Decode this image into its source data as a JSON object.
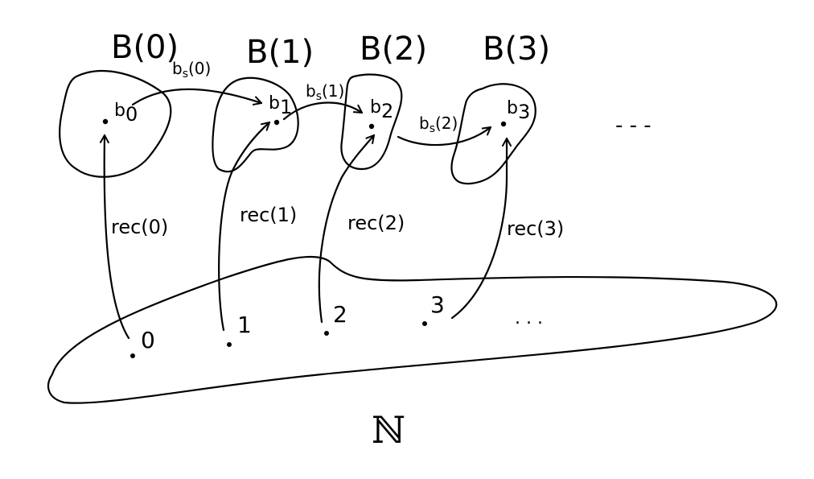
{
  "sets": [
    {
      "title": "B(0)",
      "element_base": "b",
      "element_sub": "0"
    },
    {
      "title": "B(1)",
      "element_base": "b",
      "element_sub": "1"
    },
    {
      "title": "B(2)",
      "element_base": "b",
      "element_sub": "2"
    },
    {
      "title": "B(3)",
      "element_base": "b",
      "element_sub": "3"
    }
  ],
  "successor_edges": [
    {
      "base": "b",
      "sub": "s",
      "arg": "(0)"
    },
    {
      "base": "b",
      "sub": "s",
      "arg": "(1)"
    },
    {
      "base": "b",
      "sub": "s",
      "arg": "(2)"
    }
  ],
  "rec_edges": [
    {
      "label": "rec(0)"
    },
    {
      "label": "rec(1)"
    },
    {
      "label": "rec(2)"
    },
    {
      "label": "rec(3)"
    }
  ],
  "naturals": {
    "set_label": "ℕ",
    "elements": [
      "0",
      "1",
      "2",
      "3"
    ]
  },
  "ellipsis": {
    "sets_row": "- - -",
    "naturals_row": ". . ."
  }
}
